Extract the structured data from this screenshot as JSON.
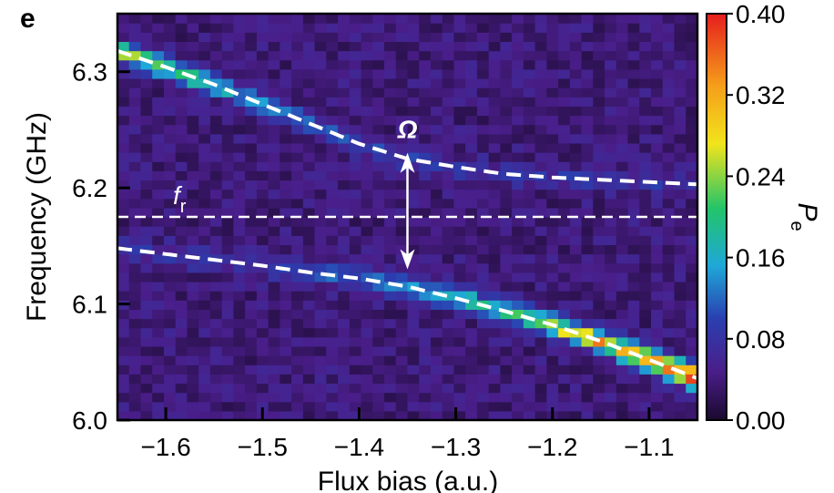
{
  "panel_label": "e",
  "chart_data": {
    "type": "heatmap",
    "xlabel": "Flux bias (a.u.)",
    "ylabel": "Frequency (GHz)",
    "xlim": [
      -1.65,
      -1.05
    ],
    "ylim": [
      6.0,
      6.35
    ],
    "x_ticks": [
      {
        "value": -1.6,
        "label": "−1.6"
      },
      {
        "value": -1.5,
        "label": "−1.5"
      },
      {
        "value": -1.4,
        "label": "−1.4"
      },
      {
        "value": -1.3,
        "label": "−1.3"
      },
      {
        "value": -1.2,
        "label": "−1.2"
      },
      {
        "value": -1.1,
        "label": "−1.1"
      }
    ],
    "y_ticks": [
      {
        "value": 6.0,
        "label": "6.0"
      },
      {
        "value": 6.1,
        "label": "6.1"
      },
      {
        "value": 6.2,
        "label": "6.2"
      },
      {
        "value": 6.3,
        "label": "6.3"
      }
    ],
    "colorbar": {
      "label": "Pe",
      "range": [
        0.0,
        0.4
      ],
      "ticks": [
        {
          "value": 0.0,
          "label": "0.00"
        },
        {
          "value": 0.08,
          "label": "0.08"
        },
        {
          "value": 0.16,
          "label": "0.16"
        },
        {
          "value": 0.24,
          "label": "0.24"
        },
        {
          "value": 0.32,
          "label": "0.32"
        },
        {
          "value": 0.4,
          "label": "0.40"
        }
      ],
      "colormap": [
        "#1a0a2e",
        "#4a1e8a",
        "#2a3fb0",
        "#1fa8d8",
        "#22c46a",
        "#f2e41c",
        "#f5a01a",
        "#e61e1e"
      ]
    },
    "background_level": 0.04,
    "upper_branch": {
      "x": [
        -1.65,
        -1.6,
        -1.55,
        -1.5,
        -1.45,
        -1.4,
        -1.35,
        -1.3,
        -1.25,
        -1.2,
        -1.15,
        -1.1,
        -1.05
      ],
      "y": [
        6.318,
        6.304,
        6.289,
        6.272,
        6.255,
        6.238,
        6.225,
        6.218,
        6.212,
        6.209,
        6.207,
        6.205,
        6.203
      ],
      "pe": [
        0.2,
        0.17,
        0.13,
        0.1,
        0.08,
        0.06,
        0.05,
        0.045,
        0.04,
        0.04,
        0.04,
        0.04,
        0.04
      ]
    },
    "lower_branch": {
      "x": [
        -1.65,
        -1.6,
        -1.55,
        -1.5,
        -1.45,
        -1.4,
        -1.35,
        -1.3,
        -1.25,
        -1.2,
        -1.15,
        -1.1,
        -1.05
      ],
      "y": [
        6.148,
        6.143,
        6.138,
        6.133,
        6.127,
        6.122,
        6.115,
        6.105,
        6.094,
        6.082,
        6.068,
        6.052,
        6.036
      ],
      "pe": [
        0.04,
        0.04,
        0.045,
        0.05,
        0.06,
        0.08,
        0.11,
        0.14,
        0.17,
        0.22,
        0.27,
        0.32,
        0.38
      ]
    },
    "resonator_line": {
      "label": "f",
      "subscript": "r",
      "y": 6.175
    },
    "splitting_arrow": {
      "label": "Ω",
      "x": -1.35,
      "y_top": 6.238,
      "y_bottom": 6.122
    }
  }
}
